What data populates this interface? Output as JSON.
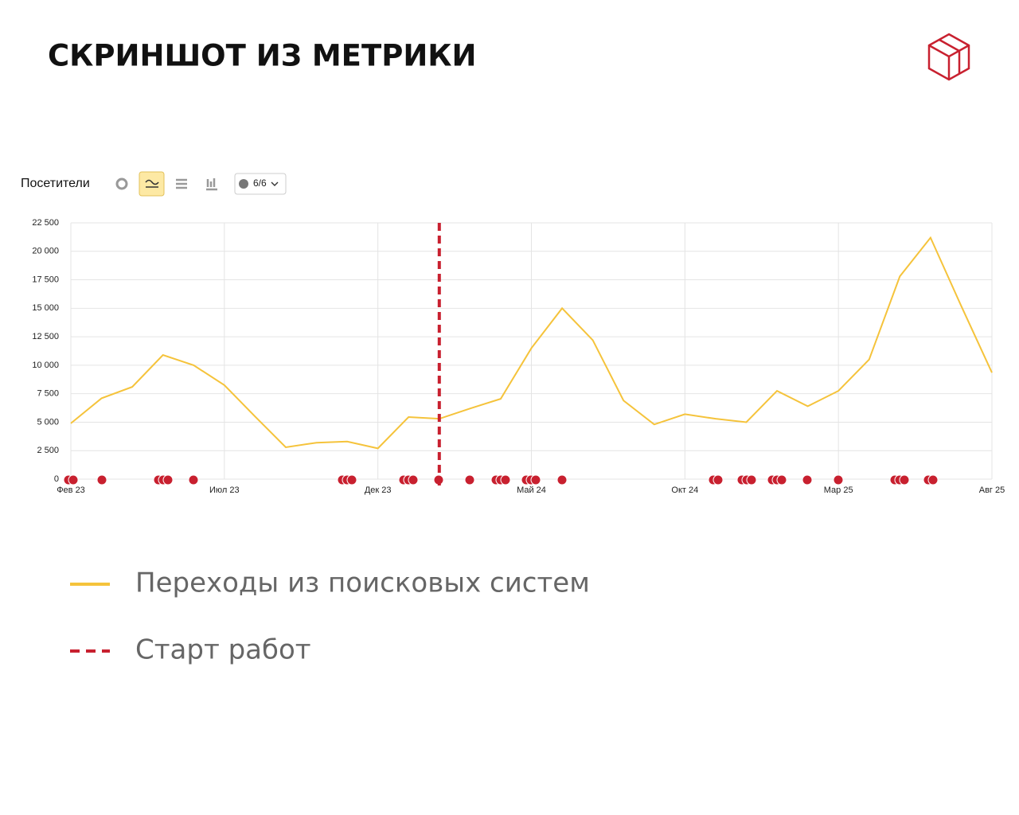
{
  "header": {
    "title": "СКРИНШОТ ИЗ МЕТРИКИ"
  },
  "toolbar": {
    "metric": "Посетители",
    "notes": "6/6"
  },
  "chart_data": {
    "type": "line",
    "categories": [
      "Фев 23",
      null,
      null,
      null,
      null,
      "Июл 23",
      null,
      null,
      null,
      null,
      "Дек 23",
      null,
      null,
      null,
      null,
      "Май 24",
      null,
      null,
      null,
      null,
      "Окт 24",
      null,
      null,
      null,
      null,
      "Мар 25",
      null,
      null,
      null,
      null,
      "Авг 25"
    ],
    "series": [
      {
        "name": "Переходы из поисковых систем",
        "color": "#f5c33b",
        "values": [
          4900,
          7100,
          8100,
          10900,
          10000,
          8250,
          5500,
          2800,
          3200,
          3300,
          2700,
          5450,
          5300,
          6200,
          7050,
          11500,
          15000,
          12200,
          6900,
          4800,
          5700,
          5300,
          5000,
          7750,
          6400,
          7750,
          10500,
          17800,
          21200,
          15200,
          9350
        ]
      }
    ],
    "reference_line": {
      "name": "Старт работ",
      "color": "#c8202f"
    },
    "ylim": [
      0,
      22500
    ],
    "yticks": [
      0,
      {
        "value": 2500,
        "label": "2 500"
      },
      {
        "value": 5000,
        "label": "5 000"
      },
      {
        "value": 7500,
        "label": "7 500"
      },
      {
        "value": 10000,
        "label": "10 000"
      },
      {
        "value": 12500,
        "label": "12 500"
      },
      {
        "value": 15000,
        "label": "15 000"
      },
      {
        "value": 17500,
        "label": "17 500"
      },
      {
        "value": 20000,
        "label": "20 000"
      },
      {
        "value": 22500,
        "label": "22 500"
      }
    ],
    "grid": true
  }
}
